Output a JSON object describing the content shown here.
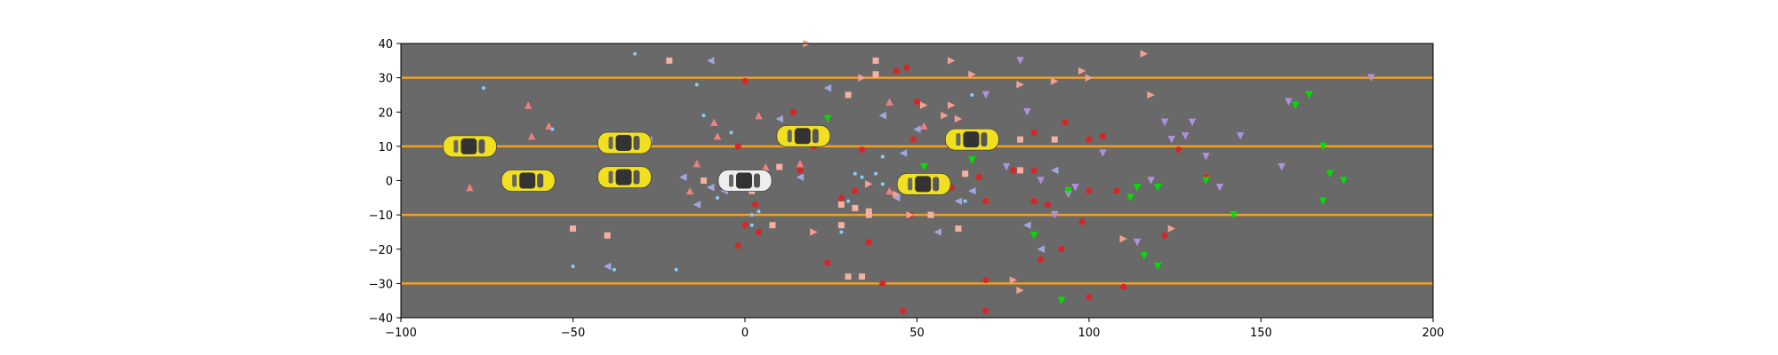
{
  "colors": {
    "figure_bg": "#ffffff",
    "road": "#696969",
    "lane_line": "#f0a020",
    "ego_car": "#eeeeee",
    "other_car": "#f0e020",
    "marker_red_circle": "#d62728",
    "marker_salmon_triangle": "#f08080",
    "marker_salmon_right_triangle": "#f4a090",
    "marker_salmon_square": "#f5b0a0",
    "marker_blue_dot": "#87cefa",
    "marker_lavender_left_triangle": "#a0a8e0",
    "marker_violet_down_triangle": "#b090e0",
    "marker_green_down_triangle": "#00e000"
  },
  "chart_data": {
    "type": "scatter",
    "title": "",
    "xlabel": "",
    "ylabel": "",
    "xlim": [
      -100,
      200
    ],
    "ylim": [
      -40,
      40
    ],
    "xticks": [
      -100,
      -50,
      0,
      50,
      100,
      150,
      200
    ],
    "yticks": [
      -40,
      -30,
      -20,
      -10,
      0,
      10,
      20,
      30,
      40
    ],
    "xtick_labels": [
      "−100",
      "−50",
      "0",
      "50",
      "100",
      "150",
      "200"
    ],
    "ytick_labels": [
      "−40",
      "−30",
      "−20",
      "−10",
      "0",
      "10",
      "20",
      "30",
      "40"
    ],
    "grid": false,
    "background": "road",
    "lane_lines_y": [
      30,
      10,
      -10,
      -30
    ],
    "vehicles": [
      {
        "role": "ego",
        "x": 0,
        "y": 0
      },
      {
        "role": "other",
        "x": -80,
        "y": 10
      },
      {
        "role": "other",
        "x": -63,
        "y": 0
      },
      {
        "role": "other",
        "x": -35,
        "y": 11
      },
      {
        "role": "other",
        "x": -35,
        "y": 1
      },
      {
        "role": "other",
        "x": 17,
        "y": 13
      },
      {
        "role": "other",
        "x": 52,
        "y": -1
      },
      {
        "role": "other",
        "x": 66,
        "y": 12
      }
    ],
    "series": [
      {
        "marker": "circle",
        "color_key": "marker_red_circle",
        "points": [
          [
            0,
            29
          ],
          [
            -2,
            10
          ],
          [
            -2,
            -19
          ],
          [
            0,
            -13
          ],
          [
            3,
            -7
          ],
          [
            4,
            -15
          ],
          [
            14,
            20
          ],
          [
            16,
            3
          ],
          [
            20,
            10
          ],
          [
            24,
            -24
          ],
          [
            28,
            -5
          ],
          [
            32,
            -3
          ],
          [
            34,
            9
          ],
          [
            36,
            -18
          ],
          [
            40,
            -30
          ],
          [
            44,
            32
          ],
          [
            46,
            -38
          ],
          [
            47,
            33
          ],
          [
            48,
            -10
          ],
          [
            49,
            12
          ],
          [
            50,
            23
          ],
          [
            60,
            -2
          ],
          [
            62,
            -14
          ],
          [
            68,
            1
          ],
          [
            70,
            -6
          ],
          [
            70,
            -29
          ],
          [
            70,
            -38
          ],
          [
            78,
            3
          ],
          [
            84,
            -6
          ],
          [
            84,
            3
          ],
          [
            84,
            14
          ],
          [
            86,
            -23
          ],
          [
            88,
            -7
          ],
          [
            92,
            -20
          ],
          [
            93,
            17
          ],
          [
            98,
            -12
          ],
          [
            100,
            12
          ],
          [
            100,
            -3
          ],
          [
            100,
            -34
          ],
          [
            104,
            13
          ],
          [
            108,
            -3
          ],
          [
            110,
            -31
          ],
          [
            122,
            -16
          ],
          [
            126,
            9
          ],
          [
            134,
            1
          ]
        ]
      },
      {
        "marker": "triangle-up",
        "color_key": "marker_salmon_triangle",
        "points": [
          [
            -80,
            -2
          ],
          [
            -63,
            22
          ],
          [
            -62,
            13
          ],
          [
            -57,
            16
          ],
          [
            -16,
            -3
          ],
          [
            -14,
            5
          ],
          [
            -9,
            17
          ],
          [
            -8,
            13
          ],
          [
            4,
            19
          ],
          [
            6,
            4
          ],
          [
            16,
            5
          ],
          [
            42,
            23
          ],
          [
            42,
            -3
          ],
          [
            52,
            16
          ]
        ]
      },
      {
        "marker": "triangle-right",
        "color_key": "marker_salmon_right_triangle",
        "points": [
          [
            18,
            40
          ],
          [
            20,
            -15
          ],
          [
            34,
            30
          ],
          [
            36,
            -1
          ],
          [
            44,
            -4
          ],
          [
            48,
            -10
          ],
          [
            52,
            22
          ],
          [
            58,
            19
          ],
          [
            60,
            22
          ],
          [
            60,
            35
          ],
          [
            62,
            18
          ],
          [
            66,
            31
          ],
          [
            78,
            -29
          ],
          [
            80,
            28
          ],
          [
            80,
            -32
          ],
          [
            90,
            29
          ],
          [
            98,
            32
          ],
          [
            100,
            30
          ],
          [
            110,
            -17
          ],
          [
            116,
            37
          ],
          [
            118,
            25
          ],
          [
            124,
            -14
          ]
        ]
      },
      {
        "marker": "square",
        "color_key": "marker_salmon_square",
        "points": [
          [
            -50,
            -14
          ],
          [
            -40,
            -16
          ],
          [
            -22,
            35
          ],
          [
            -12,
            0
          ],
          [
            0,
            -1
          ],
          [
            2,
            -3
          ],
          [
            8,
            -13
          ],
          [
            10,
            4
          ],
          [
            28,
            -7
          ],
          [
            28,
            -13
          ],
          [
            30,
            25
          ],
          [
            30,
            -28
          ],
          [
            32,
            -8
          ],
          [
            34,
            -28
          ],
          [
            36,
            -9
          ],
          [
            36,
            -10
          ],
          [
            38,
            31
          ],
          [
            38,
            35
          ],
          [
            54,
            -10
          ],
          [
            62,
            -14
          ],
          [
            64,
            2
          ],
          [
            80,
            12
          ],
          [
            80,
            3
          ],
          [
            90,
            12
          ]
        ]
      },
      {
        "marker": "dot",
        "color_key": "marker_blue_dot",
        "points": [
          [
            -76,
            27
          ],
          [
            -56,
            15
          ],
          [
            -50,
            -25
          ],
          [
            -38,
            -26
          ],
          [
            -32,
            37
          ],
          [
            -20,
            -26
          ],
          [
            -14,
            28
          ],
          [
            -12,
            19
          ],
          [
            -8,
            -5
          ],
          [
            -4,
            14
          ],
          [
            2,
            -10
          ],
          [
            2,
            -13
          ],
          [
            4,
            -9
          ],
          [
            28,
            -15
          ],
          [
            30,
            -6
          ],
          [
            32,
            2
          ],
          [
            34,
            1
          ],
          [
            38,
            2
          ],
          [
            40,
            7
          ],
          [
            40,
            -1
          ],
          [
            62,
            11
          ],
          [
            64,
            -6
          ],
          [
            66,
            6
          ],
          [
            66,
            25
          ]
        ]
      },
      {
        "marker": "triangle-left",
        "color_key": "marker_lavender_left_triangle",
        "points": [
          [
            -40,
            -25
          ],
          [
            -28,
            12
          ],
          [
            -18,
            1
          ],
          [
            -14,
            -7
          ],
          [
            -10,
            35
          ],
          [
            -10,
            -2
          ],
          [
            -6,
            -3
          ],
          [
            10,
            18
          ],
          [
            16,
            1
          ],
          [
            24,
            27
          ],
          [
            40,
            19
          ],
          [
            44,
            -5
          ],
          [
            46,
            8
          ],
          [
            50,
            15
          ],
          [
            52,
            -2
          ],
          [
            56,
            -15
          ],
          [
            62,
            -6
          ],
          [
            66,
            -3
          ],
          [
            82,
            -13
          ],
          [
            86,
            -20
          ],
          [
            90,
            3
          ]
        ]
      },
      {
        "marker": "triangle-down",
        "color_key": "marker_violet_down_triangle",
        "points": [
          [
            70,
            25
          ],
          [
            76,
            4
          ],
          [
            80,
            35
          ],
          [
            82,
            20
          ],
          [
            86,
            0
          ],
          [
            90,
            -10
          ],
          [
            94,
            -4
          ],
          [
            96,
            -2
          ],
          [
            104,
            8
          ],
          [
            114,
            -18
          ],
          [
            118,
            0
          ],
          [
            122,
            17
          ],
          [
            124,
            12
          ],
          [
            128,
            13
          ],
          [
            130,
            17
          ],
          [
            134,
            7
          ],
          [
            138,
            -2
          ],
          [
            144,
            13
          ],
          [
            156,
            4
          ],
          [
            158,
            23
          ],
          [
            182,
            30
          ]
        ]
      },
      {
        "marker": "triangle-down",
        "color_key": "marker_green_down_triangle",
        "points": [
          [
            24,
            18
          ],
          [
            52,
            4
          ],
          [
            66,
            6
          ],
          [
            84,
            -16
          ],
          [
            92,
            -35
          ],
          [
            94,
            -3
          ],
          [
            112,
            -5
          ],
          [
            114,
            -2
          ],
          [
            116,
            -22
          ],
          [
            120,
            -2
          ],
          [
            120,
            -25
          ],
          [
            134,
            0
          ],
          [
            142,
            -10
          ],
          [
            160,
            22
          ],
          [
            164,
            25
          ],
          [
            168,
            10
          ],
          [
            168,
            -6
          ],
          [
            170,
            2
          ],
          [
            174,
            0
          ]
        ]
      }
    ]
  }
}
